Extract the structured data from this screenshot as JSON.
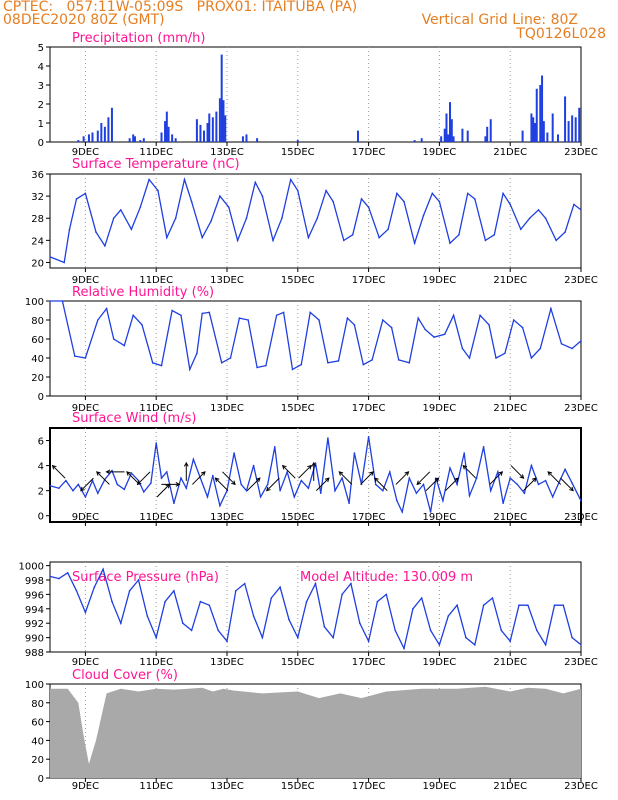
{
  "header": {
    "left_line1": "CPTEC:   057:11W-05:09S   PROX01: ITAITUBA (PA)",
    "left_line2": "08DEC2020 80Z (GMT)",
    "right_line1": "Vertical Grid Line: 80Z",
    "right_line2": "TQ0126L028"
  },
  "colors": {
    "header": "#e67e22",
    "title": "#ff1493",
    "series": "#1f3fe0",
    "cloud": "#a9a9a9",
    "grid": "#999999"
  },
  "x_tick_labels": [
    "9DEC",
    "11DEC",
    "13DEC",
    "15DEC",
    "17DEC",
    "19DEC",
    "21DEC",
    "23DEC"
  ],
  "chart_data": [
    {
      "type": "bar",
      "title": "Precipitation (mm/h)",
      "ylim": [
        0,
        5
      ],
      "yticks": [
        "0",
        "1",
        "2",
        "3",
        "4",
        "5"
      ],
      "series": [
        {
          "x": [
            0.8,
            0.95,
            1.1,
            1.2,
            1.35,
            1.45,
            1.55,
            1.65,
            1.75,
            2.25,
            2.35,
            2.4,
            2.55,
            2.65,
            3.15,
            3.25,
            3.3,
            3.35,
            3.45,
            3.55,
            4.15,
            4.25,
            4.35,
            4.45,
            4.5,
            4.6,
            4.7,
            4.8,
            4.85,
            4.9,
            4.95,
            5.45,
            5.55,
            5.85,
            7.0,
            8.7,
            10.3,
            10.5,
            11.05,
            11.15,
            11.2,
            11.25,
            11.3,
            11.35,
            11.4,
            11.65,
            11.8,
            12.3,
            12.35,
            12.45,
            13.35,
            13.6,
            13.65,
            13.7,
            13.75,
            13.85,
            13.9,
            13.95,
            14.05,
            14.2,
            14.35,
            14.55,
            14.65,
            14.75,
            14.85,
            14.95
          ],
          "values": [
            0.1,
            0.3,
            0.4,
            0.5,
            0.6,
            1.0,
            0.8,
            1.3,
            1.8,
            0.2,
            0.4,
            0.3,
            0.1,
            0.2,
            0.5,
            1.1,
            1.6,
            0.8,
            0.4,
            0.2,
            1.2,
            0.9,
            0.6,
            1.0,
            1.5,
            1.3,
            1.6,
            2.3,
            4.6,
            2.2,
            1.4,
            0.3,
            0.4,
            0.2,
            0.1,
            0.6,
            0.1,
            0.2,
            0.3,
            0.7,
            1.5,
            0.4,
            2.1,
            1.2,
            0.3,
            0.7,
            0.6,
            0.3,
            0.8,
            1.2,
            0.6,
            1.5,
            1.3,
            1.0,
            2.8,
            3.0,
            3.5,
            1.1,
            0.5,
            1.5,
            0.4,
            2.4,
            1.1,
            1.4,
            1.3,
            1.8
          ]
        }
      ]
    },
    {
      "type": "line",
      "title": "Surface Temperature (nC)",
      "ylim": [
        19,
        36
      ],
      "yticks": [
        "20",
        "24",
        "28",
        "32",
        "36"
      ],
      "series": [
        {
          "x": [
            0.0,
            0.4,
            0.55,
            0.75,
            1.0,
            1.3,
            1.55,
            1.8,
            2.0,
            2.3,
            2.55,
            2.8,
            3.05,
            3.3,
            3.55,
            3.8,
            4.0,
            4.3,
            4.55,
            4.8,
            5.05,
            5.3,
            5.55,
            5.8,
            6.0,
            6.3,
            6.55,
            6.8,
            7.0,
            7.3,
            7.55,
            7.8,
            8.0,
            8.3,
            8.55,
            8.8,
            9.0,
            9.3,
            9.55,
            9.8,
            10.0,
            10.3,
            10.55,
            10.8,
            11.0,
            11.3,
            11.55,
            11.8,
            12.0,
            12.3,
            12.55,
            12.8,
            13.0,
            13.3,
            13.55,
            13.8,
            14.0,
            14.3,
            14.55,
            14.8,
            15.0
          ],
          "values": [
            21.0,
            20.0,
            26.0,
            31.5,
            32.5,
            25.5,
            23.0,
            28.0,
            29.5,
            26.0,
            30.0,
            35.0,
            33.0,
            24.5,
            28.0,
            35.0,
            31.0,
            24.5,
            27.5,
            32.0,
            30.0,
            24.0,
            28.0,
            34.5,
            32.0,
            24.0,
            28.0,
            35.0,
            33.0,
            24.5,
            28.0,
            33.0,
            31.0,
            24.0,
            25.0,
            31.5,
            30.0,
            24.5,
            26.0,
            32.5,
            31.0,
            23.5,
            28.5,
            32.5,
            31.0,
            23.5,
            25.0,
            32.5,
            31.5,
            24.0,
            25.0,
            32.5,
            30.5,
            26.0,
            28.0,
            29.5,
            28.0,
            24.0,
            25.5,
            30.5,
            29.5
          ]
        }
      ]
    },
    {
      "type": "line",
      "title": "Relative Humidity (%)",
      "ylim": [
        0,
        100
      ],
      "yticks": [
        "0",
        "20",
        "40",
        "60",
        "80",
        "100"
      ],
      "series": [
        {
          "x": [
            0.0,
            0.35,
            0.7,
            1.0,
            1.35,
            1.6,
            1.8,
            2.1,
            2.35,
            2.6,
            2.9,
            3.15,
            3.45,
            3.7,
            3.95,
            4.15,
            4.3,
            4.5,
            4.85,
            5.1,
            5.35,
            5.6,
            5.85,
            6.1,
            6.4,
            6.6,
            6.85,
            7.1,
            7.35,
            7.6,
            7.85,
            8.15,
            8.4,
            8.6,
            8.85,
            9.1,
            9.4,
            9.65,
            9.85,
            10.15,
            10.4,
            10.6,
            10.85,
            11.15,
            11.4,
            11.65,
            11.85,
            12.15,
            12.4,
            12.6,
            12.85,
            13.1,
            13.35,
            13.6,
            13.85,
            14.15,
            14.45,
            14.75,
            15.0
          ],
          "values": [
            100.0,
            100.0,
            42.0,
            40.0,
            80.0,
            92.0,
            60.0,
            53.0,
            85.0,
            75.0,
            35.0,
            32.0,
            90.0,
            85.0,
            28.0,
            45.0,
            87.0,
            88.0,
            35.0,
            40.0,
            82.0,
            80.0,
            30.0,
            32.0,
            85.0,
            88.0,
            28.0,
            33.0,
            88.0,
            80.0,
            35.0,
            37.0,
            82.0,
            75.0,
            33.0,
            38.0,
            80.0,
            72.0,
            38.0,
            35.0,
            82.0,
            70.0,
            62.0,
            65.0,
            85.0,
            50.0,
            40.0,
            85.0,
            75.0,
            40.0,
            45.0,
            80.0,
            72.0,
            40.0,
            50.0,
            92.0,
            55.0,
            50.0,
            58.0
          ]
        }
      ]
    },
    {
      "type": "line",
      "title": "Surface Wind (m/s)",
      "ylim": [
        -0.5,
        7
      ],
      "yticks": [
        "0",
        "2",
        "4",
        "6"
      ],
      "series": [
        {
          "x": [
            0.0,
            0.25,
            0.45,
            0.65,
            0.8,
            1.0,
            1.2,
            1.35,
            1.55,
            1.75,
            1.9,
            2.1,
            2.3,
            2.5,
            2.65,
            2.85,
            3.0,
            3.15,
            3.3,
            3.5,
            3.7,
            3.85,
            4.05,
            4.25,
            4.45,
            4.6,
            4.8,
            5.0,
            5.2,
            5.4,
            5.55,
            5.75,
            5.95,
            6.15,
            6.35,
            6.5,
            6.7,
            6.9,
            7.1,
            7.3,
            7.5,
            7.65,
            7.85,
            8.05,
            8.25,
            8.45,
            8.6,
            8.8,
            9.0,
            9.2,
            9.4,
            9.6,
            9.8,
            9.95,
            10.15,
            10.35,
            10.55,
            10.75,
            10.9,
            11.1,
            11.3,
            11.5,
            11.7,
            11.85,
            12.05,
            12.25,
            12.45,
            12.65,
            12.8,
            13.0,
            13.2,
            13.4,
            13.6,
            13.8,
            14.0,
            14.2,
            14.4,
            14.55,
            14.75,
            15.0
          ],
          "values": [
            2.4,
            2.2,
            2.8,
            2.0,
            2.5,
            1.5,
            2.8,
            1.8,
            2.9,
            3.6,
            2.5,
            2.1,
            3.4,
            2.8,
            1.9,
            2.6,
            5.8,
            3.0,
            3.5,
            1.0,
            3.0,
            2.2,
            4.5,
            3.0,
            1.5,
            3.2,
            0.8,
            2.0,
            5.0,
            2.5,
            2.0,
            4.0,
            1.5,
            2.5,
            5.5,
            2.0,
            3.5,
            1.5,
            2.8,
            2.2,
            4.2,
            1.8,
            6.2,
            2.0,
            3.0,
            1.0,
            5.0,
            2.5,
            6.3,
            2.5,
            2.0,
            3.5,
            1.2,
            0.3,
            3.0,
            1.8,
            2.5,
            0.3,
            3.0,
            1.2,
            3.8,
            2.5,
            5.0,
            1.6,
            3.0,
            5.5,
            2.0,
            3.5,
            1.0,
            3.0,
            2.5,
            1.8,
            4.0,
            2.5,
            2.8,
            1.5,
            2.8,
            3.7,
            2.6,
            1.2
          ]
        }
      ],
      "wind_arrows": [
        {
          "x": 0.25,
          "speed": 3.5,
          "direction": "NW"
        },
        {
          "x": 1.05,
          "speed": 2.5,
          "direction": "SW"
        },
        {
          "x": 1.5,
          "speed": 3.0,
          "direction": "NW"
        },
        {
          "x": 1.85,
          "speed": 3.5,
          "direction": "W"
        },
        {
          "x": 2.35,
          "speed": 3.0,
          "direction": "NW"
        },
        {
          "x": 2.65,
          "speed": 3.0,
          "direction": "SW"
        },
        {
          "x": 3.2,
          "speed": 2.0,
          "direction": "NE"
        },
        {
          "x": 3.4,
          "speed": 2.5,
          "direction": "E"
        },
        {
          "x": 3.85,
          "speed": 3.5,
          "direction": "N"
        },
        {
          "x": 4.2,
          "speed": 3.0,
          "direction": "NE"
        },
        {
          "x": 4.85,
          "speed": 2.5,
          "direction": "NW"
        },
        {
          "x": 5.05,
          "speed": 3.0,
          "direction": "SE"
        },
        {
          "x": 5.75,
          "speed": 2.5,
          "direction": "NE"
        },
        {
          "x": 6.3,
          "speed": 2.5,
          "direction": "SW"
        },
        {
          "x": 6.75,
          "speed": 3.5,
          "direction": "NW"
        },
        {
          "x": 7.2,
          "speed": 3.5,
          "direction": "NE"
        },
        {
          "x": 7.45,
          "speed": 3.5,
          "direction": "N"
        },
        {
          "x": 7.7,
          "speed": 2.5,
          "direction": "NE"
        },
        {
          "x": 8.35,
          "speed": 3.0,
          "direction": "NW"
        },
        {
          "x": 8.95,
          "speed": 3.0,
          "direction": "NE"
        },
        {
          "x": 9.35,
          "speed": 2.5,
          "direction": "NW"
        },
        {
          "x": 9.95,
          "speed": 3.0,
          "direction": "NE"
        },
        {
          "x": 10.55,
          "speed": 3.0,
          "direction": "SW"
        },
        {
          "x": 10.8,
          "speed": 2.5,
          "direction": "NE"
        },
        {
          "x": 11.35,
          "speed": 2.5,
          "direction": "NE"
        },
        {
          "x": 11.85,
          "speed": 3.5,
          "direction": "NW"
        },
        {
          "x": 12.6,
          "speed": 3.0,
          "direction": "NE"
        },
        {
          "x": 13.2,
          "speed": 3.5,
          "direction": "SE"
        },
        {
          "x": 13.55,
          "speed": 2.5,
          "direction": "NE"
        },
        {
          "x": 14.25,
          "speed": 3.0,
          "direction": "NW"
        },
        {
          "x": 14.6,
          "speed": 2.5,
          "direction": "SE"
        }
      ]
    },
    {
      "type": "line",
      "title": "Surface Pressure (hPa)",
      "subtitle": "Model Altitude: 130.009 m",
      "ylim": [
        988,
        1000.5
      ],
      "yticks": [
        "988",
        "990",
        "992",
        "994",
        "996",
        "998",
        "1000"
      ],
      "series": [
        {
          "x": [
            0.0,
            0.25,
            0.5,
            0.75,
            1.0,
            1.25,
            1.5,
            1.75,
            2.0,
            2.25,
            2.5,
            2.75,
            3.0,
            3.25,
            3.5,
            3.75,
            4.0,
            4.25,
            4.5,
            4.75,
            5.0,
            5.25,
            5.5,
            5.75,
            6.0,
            6.25,
            6.5,
            6.75,
            7.0,
            7.25,
            7.5,
            7.75,
            8.0,
            8.25,
            8.5,
            8.75,
            9.0,
            9.25,
            9.5,
            9.75,
            10.0,
            10.25,
            10.5,
            10.75,
            11.0,
            11.25,
            11.5,
            11.75,
            12.0,
            12.25,
            12.5,
            12.75,
            13.0,
            13.25,
            13.5,
            13.75,
            14.0,
            14.25,
            14.5,
            14.75,
            15.0
          ],
          "values": [
            998.5,
            998.2,
            999.0,
            996.5,
            993.5,
            997.0,
            999.5,
            995.0,
            992.0,
            996.5,
            998.0,
            993.0,
            990.0,
            995.0,
            996.5,
            992.0,
            991.0,
            995.0,
            994.5,
            991.0,
            989.5,
            996.5,
            997.5,
            993.0,
            990.0,
            995.5,
            997.0,
            992.5,
            990.0,
            995.0,
            997.5,
            991.5,
            990.0,
            996.0,
            997.5,
            992.0,
            989.5,
            995.0,
            996.0,
            991.0,
            988.5,
            994.0,
            995.5,
            991.0,
            989.0,
            993.0,
            994.5,
            990.0,
            989.0,
            994.5,
            995.5,
            991.0,
            989.5,
            994.5,
            994.5,
            991.0,
            989.0,
            994.5,
            994.5,
            990.0,
            989.0
          ]
        }
      ]
    },
    {
      "type": "bar",
      "title": "Cloud Cover (%)",
      "ylim": [
        0,
        100
      ],
      "yticks": [
        "0",
        "20",
        "40",
        "60",
        "80",
        "100"
      ],
      "series": [
        {
          "x": [
            0.0,
            0.5,
            0.8,
            0.95,
            1.1,
            1.3,
            1.6,
            2.0,
            2.5,
            3.0,
            3.5,
            3.9,
            4.3,
            4.6,
            4.9,
            5.2,
            6.0,
            7.0,
            7.6,
            8.2,
            8.8,
            9.5,
            10.5,
            11.5,
            12.3,
            13.0,
            13.5,
            14.0,
            14.5,
            15.0
          ],
          "values": [
            95.0,
            95.0,
            80.0,
            45.0,
            15.0,
            40.0,
            90.0,
            95.0,
            92.0,
            95.0,
            94.0,
            95.0,
            96.0,
            92.0,
            95.0,
            93.0,
            90.0,
            92.0,
            85.0,
            90.0,
            85.0,
            92.0,
            95.0,
            95.0,
            97.0,
            92.0,
            96.0,
            95.0,
            90.0,
            95.0
          ]
        }
      ]
    }
  ]
}
